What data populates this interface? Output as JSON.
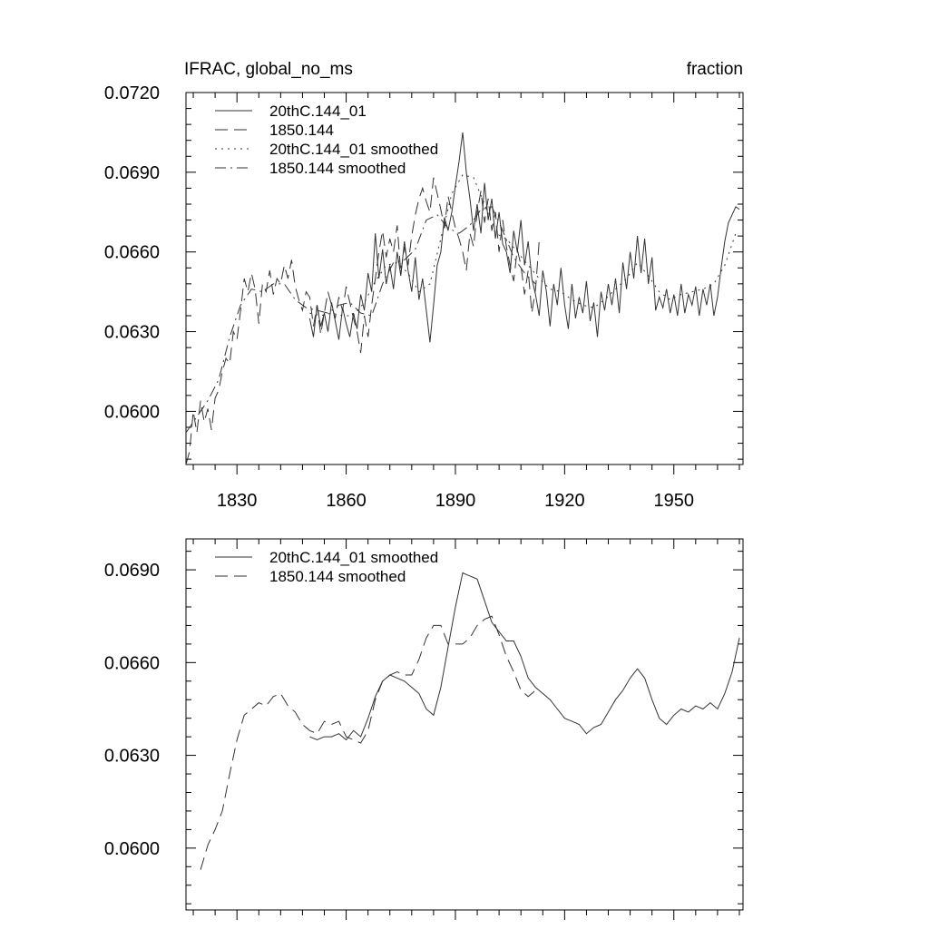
{
  "chart_data": [
    {
      "type": "line",
      "title_left": "IFRAC, global_no_ms",
      "title_right": "fraction",
      "xlabel": "",
      "ylabel": "",
      "xlim": [
        1816,
        1969
      ],
      "ylim": [
        0.058,
        0.072
      ],
      "xticks": [
        1830,
        1860,
        1890,
        1920,
        1950
      ],
      "xtick_labels": [
        "1830",
        "1860",
        "1890",
        "1920",
        "1950"
      ],
      "yticks": [
        0.06,
        0.063,
        0.066,
        0.069,
        0.072
      ],
      "ytick_labels": [
        "0.0600",
        "0.0630",
        "0.0660",
        "0.0690",
        "0.0720"
      ],
      "legend_position": "top-left",
      "series": [
        {
          "name": "20thC.144_01",
          "style": "solid",
          "x": [
            1850,
            1851,
            1852,
            1853,
            1854,
            1855,
            1856,
            1857,
            1858,
            1859,
            1860,
            1861,
            1862,
            1863,
            1864,
            1865,
            1866,
            1867,
            1868,
            1869,
            1870,
            1871,
            1872,
            1873,
            1874,
            1875,
            1876,
            1877,
            1878,
            1879,
            1880,
            1881,
            1882,
            1883,
            1884,
            1885,
            1886,
            1887,
            1888,
            1889,
            1890,
            1891,
            1892,
            1893,
            1894,
            1895,
            1896,
            1897,
            1898,
            1899,
            1900,
            1901,
            1902,
            1903,
            1904,
            1905,
            1906,
            1907,
            1908,
            1909,
            1910,
            1911,
            1912,
            1913,
            1914,
            1915,
            1916,
            1917,
            1918,
            1919,
            1920,
            1921,
            1922,
            1923,
            1924,
            1925,
            1926,
            1927,
            1928,
            1929,
            1930,
            1931,
            1932,
            1933,
            1934,
            1935,
            1936,
            1937,
            1938,
            1939,
            1940,
            1941,
            1942,
            1943,
            1944,
            1945,
            1946,
            1947,
            1948,
            1949,
            1950,
            1951,
            1952,
            1953,
            1954,
            1955,
            1956,
            1957,
            1958,
            1959,
            1960,
            1961,
            1962,
            1963,
            1964,
            1965,
            1966,
            1967,
            1968
          ],
          "values": [
            0.0635,
            0.0628,
            0.064,
            0.0632,
            0.0637,
            0.063,
            0.0641,
            0.0634,
            0.0627,
            0.0639,
            0.0633,
            0.0628,
            0.0637,
            0.0631,
            0.0644,
            0.0638,
            0.0652,
            0.0645,
            0.0667,
            0.065,
            0.0661,
            0.0648,
            0.0655,
            0.0646,
            0.066,
            0.0651,
            0.0664,
            0.0653,
            0.0645,
            0.0658,
            0.0642,
            0.065,
            0.0638,
            0.0626,
            0.064,
            0.0655,
            0.066,
            0.0673,
            0.0668,
            0.0675,
            0.0685,
            0.0694,
            0.0705,
            0.069,
            0.068,
            0.0668,
            0.0678,
            0.0667,
            0.0686,
            0.0672,
            0.068,
            0.0665,
            0.0675,
            0.0663,
            0.066,
            0.0652,
            0.0668,
            0.066,
            0.0672,
            0.0655,
            0.0664,
            0.065,
            0.0644,
            0.0636,
            0.0653,
            0.0645,
            0.0632,
            0.0648,
            0.064,
            0.0654,
            0.064,
            0.0631,
            0.0648,
            0.0635,
            0.0643,
            0.0637,
            0.0649,
            0.0634,
            0.0641,
            0.0628,
            0.0645,
            0.0638,
            0.0648,
            0.064,
            0.065,
            0.0637,
            0.0656,
            0.0646,
            0.066,
            0.065,
            0.0666,
            0.0652,
            0.0665,
            0.0648,
            0.0658,
            0.0638,
            0.0643,
            0.0639,
            0.0646,
            0.0637,
            0.0644,
            0.0636,
            0.0648,
            0.0637,
            0.0644,
            0.064,
            0.0647,
            0.0636,
            0.0646,
            0.064,
            0.0648,
            0.0636,
            0.0643,
            0.0654,
            0.0664,
            0.0671,
            0.0674,
            0.0677,
            0.0676
          ]
        },
        {
          "name": "1850.144",
          "style": "dashed",
          "x": [
            1816,
            1817,
            1818,
            1819,
            1820,
            1821,
            1822,
            1823,
            1824,
            1825,
            1826,
            1827,
            1828,
            1829,
            1830,
            1831,
            1832,
            1833,
            1834,
            1835,
            1836,
            1837,
            1838,
            1839,
            1840,
            1841,
            1842,
            1843,
            1844,
            1845,
            1846,
            1847,
            1848,
            1849,
            1850,
            1851,
            1852,
            1853,
            1854,
            1855,
            1856,
            1857,
            1858,
            1859,
            1860,
            1861,
            1862,
            1863,
            1864,
            1865,
            1866,
            1867,
            1868,
            1869,
            1870,
            1871,
            1872,
            1873,
            1874,
            1875,
            1876,
            1877,
            1878,
            1879,
            1880,
            1881,
            1882,
            1883,
            1884,
            1885,
            1886,
            1887,
            1888,
            1889,
            1890,
            1891,
            1892,
            1893,
            1894,
            1895,
            1896,
            1897,
            1898,
            1899,
            1900,
            1901,
            1902,
            1903,
            1904,
            1905,
            1906,
            1907,
            1908,
            1909,
            1910,
            1911,
            1912,
            1913
          ],
          "values": [
            0.058,
            0.0585,
            0.06,
            0.0592,
            0.0604,
            0.0596,
            0.0601,
            0.0593,
            0.0605,
            0.0608,
            0.0615,
            0.062,
            0.0618,
            0.063,
            0.0627,
            0.0638,
            0.065,
            0.0645,
            0.0652,
            0.0646,
            0.0633,
            0.0648,
            0.0645,
            0.0653,
            0.0644,
            0.065,
            0.0648,
            0.0655,
            0.065,
            0.0657,
            0.0647,
            0.0642,
            0.0638,
            0.0645,
            0.0643,
            0.0632,
            0.064,
            0.0629,
            0.0637,
            0.0645,
            0.064,
            0.0635,
            0.0643,
            0.0638,
            0.0647,
            0.0641,
            0.0635,
            0.063,
            0.0622,
            0.0636,
            0.0628,
            0.064,
            0.065,
            0.066,
            0.0668,
            0.0658,
            0.0665,
            0.066,
            0.067,
            0.0652,
            0.0662,
            0.0655,
            0.0666,
            0.0674,
            0.068,
            0.0684,
            0.0679,
            0.0675,
            0.0688,
            0.0682,
            0.0676,
            0.0669,
            0.0681,
            0.0675,
            0.0669,
            0.0665,
            0.066,
            0.0653,
            0.0667,
            0.0662,
            0.0675,
            0.0683,
            0.0671,
            0.068,
            0.0668,
            0.0675,
            0.066,
            0.0672,
            0.0662,
            0.0655,
            0.0649,
            0.0661,
            0.0655,
            0.0644,
            0.0653,
            0.0637,
            0.0646,
            0.0664
          ]
        },
        {
          "name": "20thC.144_01 smoothed",
          "style": "dotted",
          "x": [
            1850,
            1853,
            1856,
            1859,
            1862,
            1865,
            1868,
            1871,
            1874,
            1877,
            1880,
            1883,
            1886,
            1889,
            1892,
            1895,
            1898,
            1901,
            1904,
            1907,
            1910,
            1913,
            1916,
            1919,
            1922,
            1925,
            1928,
            1931,
            1934,
            1937,
            1940,
            1943,
            1946,
            1949,
            1952,
            1955,
            1958,
            1961,
            1964,
            1967
          ],
          "values": [
            0.0637,
            0.0636,
            0.0637,
            0.0636,
            0.0636,
            0.0641,
            0.0649,
            0.0655,
            0.0656,
            0.0652,
            0.0645,
            0.0648,
            0.0665,
            0.0682,
            0.0689,
            0.0688,
            0.0678,
            0.0667,
            0.0665,
            0.066,
            0.0655,
            0.065,
            0.0646,
            0.0645,
            0.0642,
            0.064,
            0.0639,
            0.0642,
            0.0646,
            0.065,
            0.0656,
            0.0651,
            0.0645,
            0.0642,
            0.0644,
            0.0645,
            0.0646,
            0.0648,
            0.0655,
            0.0667
          ]
        },
        {
          "name": "1850.144 smoothed",
          "style": "dashdot",
          "x": [
            1816,
            1819,
            1822,
            1825,
            1828,
            1831,
            1834,
            1837,
            1840,
            1843,
            1846,
            1849,
            1852,
            1855,
            1858,
            1861,
            1864,
            1867,
            1870,
            1873,
            1876,
            1879,
            1882,
            1885,
            1888,
            1891,
            1894,
            1897,
            1900,
            1903,
            1906,
            1909,
            1912
          ],
          "values": [
            0.0592,
            0.0598,
            0.0604,
            0.0612,
            0.0628,
            0.064,
            0.0646,
            0.0645,
            0.0648,
            0.0648,
            0.0642,
            0.0639,
            0.0638,
            0.0637,
            0.064,
            0.0641,
            0.0637,
            0.0636,
            0.0648,
            0.0656,
            0.0657,
            0.0661,
            0.0672,
            0.0674,
            0.0669,
            0.0667,
            0.067,
            0.0676,
            0.0677,
            0.0668,
            0.0658,
            0.0652,
            0.0648
          ]
        }
      ]
    },
    {
      "type": "line",
      "title_left": "",
      "title_right": "",
      "xlabel": "",
      "ylabel": "",
      "xlim": [
        1816,
        1969
      ],
      "ylim": [
        0.058,
        0.07
      ],
      "xticks": [
        1830,
        1860,
        1890,
        1920,
        1950
      ],
      "xtick_labels": [],
      "yticks": [
        0.06,
        0.063,
        0.066,
        0.069
      ],
      "ytick_labels": [
        "0.0600",
        "0.0630",
        "0.0660",
        "0.0690"
      ],
      "legend_position": "top-left",
      "series": [
        {
          "name": "20thC.144_01 smoothed",
          "style": "solid",
          "x": [
            1850,
            1852,
            1854,
            1856,
            1858,
            1860,
            1862,
            1864,
            1866,
            1868,
            1870,
            1872,
            1874,
            1876,
            1878,
            1880,
            1882,
            1884,
            1886,
            1888,
            1890,
            1892,
            1894,
            1896,
            1898,
            1900,
            1902,
            1904,
            1906,
            1908,
            1910,
            1912,
            1914,
            1916,
            1918,
            1920,
            1922,
            1924,
            1926,
            1928,
            1930,
            1932,
            1934,
            1936,
            1938,
            1940,
            1942,
            1944,
            1946,
            1948,
            1950,
            1952,
            1954,
            1956,
            1958,
            1960,
            1962,
            1964,
            1966,
            1968
          ],
          "values": [
            0.0636,
            0.0635,
            0.0636,
            0.0636,
            0.0637,
            0.0635,
            0.0638,
            0.0636,
            0.0642,
            0.0649,
            0.0654,
            0.0656,
            0.0655,
            0.0654,
            0.0652,
            0.065,
            0.0645,
            0.0643,
            0.0652,
            0.0665,
            0.0678,
            0.0689,
            0.0688,
            0.0687,
            0.068,
            0.0673,
            0.067,
            0.0667,
            0.0667,
            0.0662,
            0.0655,
            0.0652,
            0.065,
            0.0648,
            0.0645,
            0.0642,
            0.0641,
            0.064,
            0.0637,
            0.0639,
            0.064,
            0.0644,
            0.0648,
            0.0651,
            0.0655,
            0.0658,
            0.0655,
            0.0648,
            0.0642,
            0.064,
            0.0643,
            0.0645,
            0.0644,
            0.0646,
            0.0645,
            0.0647,
            0.0645,
            0.065,
            0.0657,
            0.0668
          ]
        },
        {
          "name": "1850.144 smoothed",
          "style": "dashed",
          "x": [
            1820,
            1822,
            1824,
            1826,
            1828,
            1830,
            1832,
            1834,
            1836,
            1838,
            1840,
            1842,
            1844,
            1846,
            1848,
            1850,
            1852,
            1854,
            1856,
            1858,
            1860,
            1862,
            1864,
            1866,
            1868,
            1870,
            1872,
            1874,
            1876,
            1878,
            1880,
            1882,
            1884,
            1886,
            1888,
            1890,
            1892,
            1894,
            1896,
            1898,
            1900,
            1902,
            1904,
            1906,
            1908,
            1910,
            1912
          ],
          "values": [
            0.0593,
            0.0601,
            0.0606,
            0.0612,
            0.0624,
            0.0635,
            0.0643,
            0.0645,
            0.0647,
            0.0646,
            0.0649,
            0.065,
            0.0646,
            0.0644,
            0.064,
            0.0638,
            0.0637,
            0.0641,
            0.064,
            0.0641,
            0.0636,
            0.0635,
            0.0634,
            0.0638,
            0.0648,
            0.0654,
            0.0656,
            0.0657,
            0.0656,
            0.0656,
            0.0661,
            0.0668,
            0.0672,
            0.0672,
            0.0666,
            0.0666,
            0.0666,
            0.0668,
            0.0672,
            0.0674,
            0.0675,
            0.0669,
            0.0662,
            0.0657,
            0.0651,
            0.0649,
            0.0651
          ]
        }
      ]
    }
  ]
}
